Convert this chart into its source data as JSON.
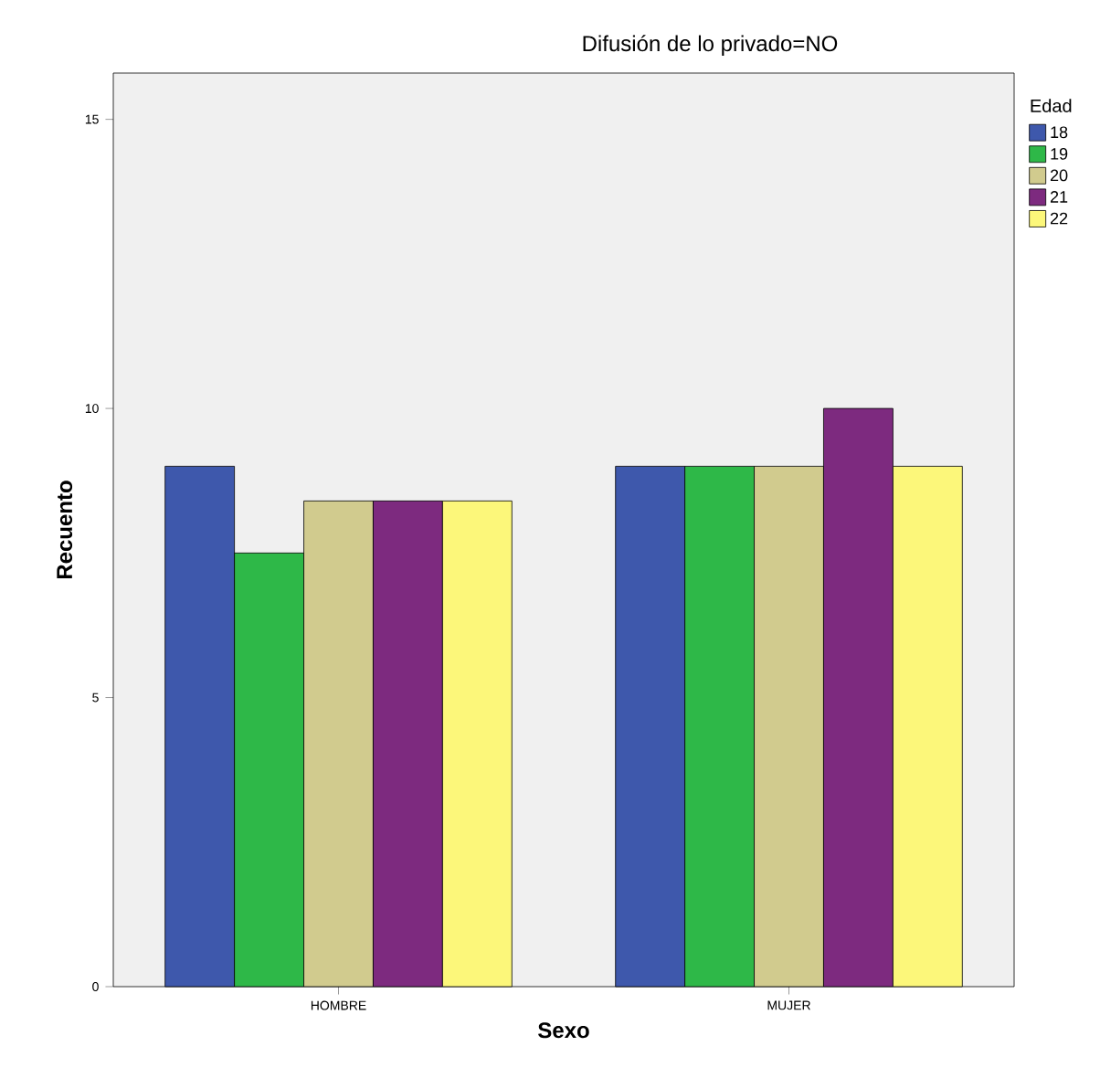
{
  "chart_data": {
    "type": "bar",
    "title": "Difusión de lo privado=NO",
    "xlabel": "Sexo",
    "ylabel": "Recuento",
    "legend_title": "Edad",
    "categories": [
      "HOMBRE",
      "MUJER"
    ],
    "series": [
      {
        "name": "18",
        "color": "#3e58ac",
        "values": [
          9,
          9
        ]
      },
      {
        "name": "19",
        "color": "#2eb848",
        "values": [
          7.5,
          9
        ]
      },
      {
        "name": "20",
        "color": "#d1cb8e",
        "values": [
          8.4,
          9
        ]
      },
      {
        "name": "21",
        "color": "#7d2a7f",
        "values": [
          8.4,
          10
        ]
      },
      {
        "name": "22",
        "color": "#fcf77a",
        "values": [
          8.4,
          9
        ]
      }
    ],
    "ylim": [
      0,
      15.8
    ],
    "yticks": [
      0,
      5,
      10,
      15
    ],
    "grid": false,
    "legend": "top right"
  }
}
